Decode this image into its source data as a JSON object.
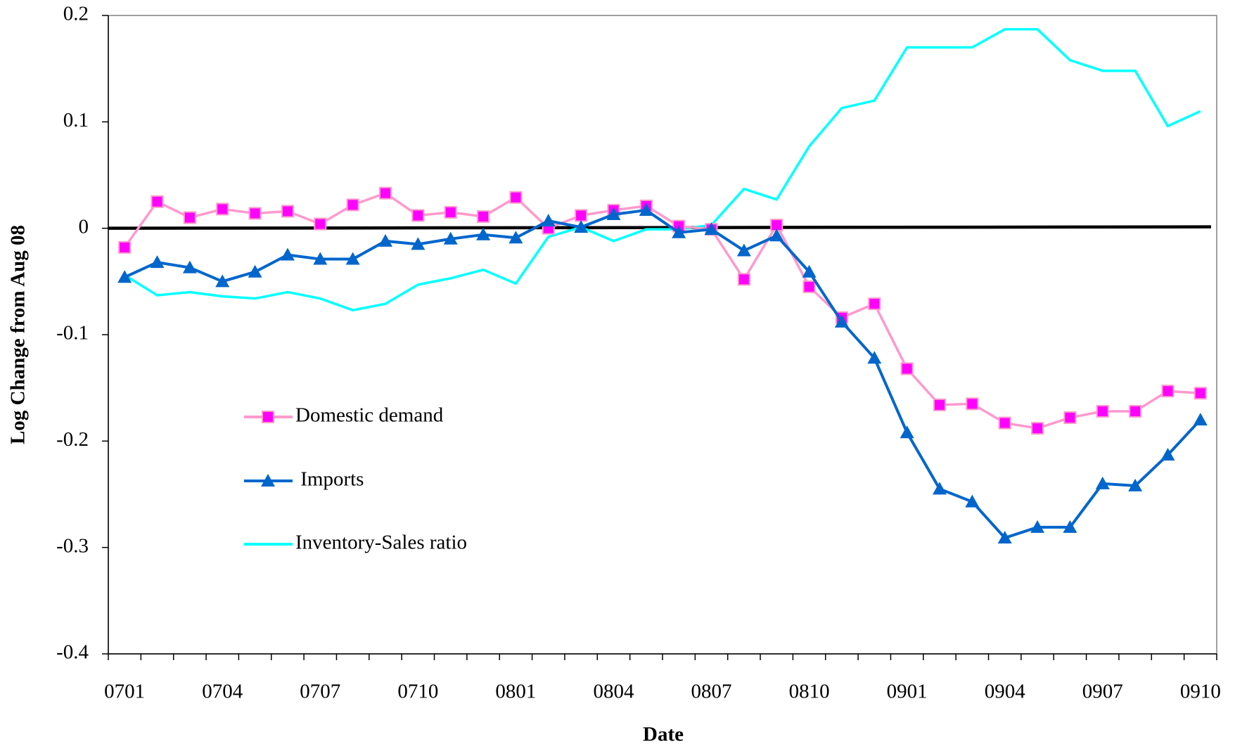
{
  "chart_data": {
    "type": "line",
    "x_label": "Date",
    "y_label": "Log Change from Aug 08",
    "categories": [
      "0701",
      null,
      null,
      "0704",
      null,
      null,
      "0707",
      null,
      null,
      "0710",
      null,
      null,
      "0801",
      null,
      null,
      "0804",
      null,
      null,
      "0807",
      null,
      null,
      "0810",
      null,
      null,
      "0901",
      null,
      null,
      "0904",
      null,
      null,
      "0907",
      null,
      null,
      "0910"
    ],
    "series": [
      {
        "name": "Domestic demand",
        "color": "#ff99cc",
        "marker": "square",
        "marker_color": "#ff00ff",
        "values": [
          -0.018,
          0.025,
          0.01,
          0.018,
          0.014,
          0.016,
          0.004,
          0.022,
          0.033,
          0.012,
          0.015,
          0.011,
          0.029,
          0.0,
          0.012,
          0.017,
          0.021,
          0.002,
          -0.001,
          -0.048,
          0.003,
          -0.055,
          -0.084,
          -0.071,
          -0.132,
          -0.166,
          -0.165,
          -0.183,
          -0.188,
          -0.178,
          -0.172,
          -0.172,
          -0.153,
          -0.155
        ]
      },
      {
        "name": " Imports",
        "color": "#0066cc",
        "marker": "triangle",
        "marker_color": "#0066cc",
        "values": [
          -0.046,
          -0.032,
          -0.037,
          -0.05,
          -0.041,
          -0.025,
          -0.029,
          -0.029,
          -0.012,
          -0.015,
          -0.01,
          -0.006,
          -0.009,
          0.007,
          0.001,
          0.013,
          0.017,
          -0.004,
          -0.001,
          -0.021,
          -0.007,
          -0.041,
          -0.088,
          -0.122,
          -0.192,
          -0.245,
          -0.257,
          -0.291,
          -0.281,
          -0.281,
          -0.24,
          -0.242,
          -0.213,
          -0.18
        ]
      },
      {
        "name": "Inventory-Sales ratio",
        "color": "#00ffff",
        "marker": "none",
        "values": [
          -0.044,
          -0.063,
          -0.06,
          -0.064,
          -0.066,
          -0.06,
          -0.066,
          -0.077,
          -0.071,
          -0.053,
          -0.047,
          -0.039,
          -0.052,
          -0.008,
          0.001,
          -0.012,
          -0.001,
          -0.001,
          0.003,
          0.037,
          0.027,
          0.077,
          0.113,
          0.12,
          0.17,
          0.17,
          0.17,
          0.187,
          0.187,
          0.158,
          0.148,
          0.148,
          0.096,
          0.11
        ]
      }
    ],
    "ylim": [
      -0.4,
      0.2
    ],
    "yticks": [
      -0.4,
      -0.3,
      -0.2,
      -0.1,
      0,
      0.1,
      0.2
    ],
    "zero_line": true,
    "grid": false,
    "legend": "left"
  }
}
